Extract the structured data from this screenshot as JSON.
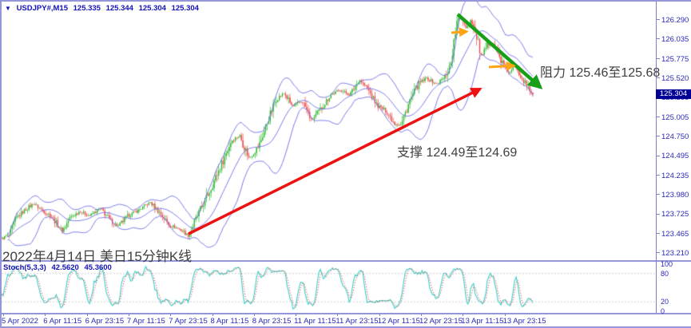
{
  "window": {
    "quote_line": {
      "dropdown_icon": {
        "name": "dropdown-icon",
        "glyph": "▼"
      },
      "symbol_period": "USDJPY#,M15",
      "open": "125.335",
      "high": "125.344",
      "low": "125.304",
      "close": "125.304"
    }
  },
  "colors": {
    "border": "#9595d9",
    "axis_text": "#2a2ab8",
    "quote_text": "#1212b8",
    "bull_candle": "#2db82d",
    "bear_candle": "#ef4545",
    "bollinger": "#7373ea",
    "stoch_main": "#38cfc8",
    "stoch_signal": "#e04545",
    "price_tag_bg": "#000096",
    "red_arrow": "#ee1111",
    "green_arrow": "#17a017",
    "orange_arrow": "#ffa515",
    "annotation_text": "#3f3f3f"
  },
  "chart_data": {
    "type": "candlestick",
    "symbol": "USDJPY#",
    "timeframe": "M15",
    "indicators": [
      "Bollinger Bands",
      "Stochastic(5,3,3)"
    ],
    "y_axis": {
      "price_at_top": 126.53,
      "price_at_bottom": 123.115
    },
    "price_axis_ticks": [
      "126.290",
      "126.035",
      "125.775",
      "125.520",
      "125.265",
      "125.005",
      "124.750",
      "124.495",
      "124.235",
      "123.980",
      "123.725",
      "123.465",
      "123.210"
    ],
    "current_price": "125.304",
    "time_axis_labels": [
      "5 Apr 2022",
      "6 Apr 11:15",
      "6 Apr 23:15",
      "7 Apr 11:15",
      "7 Apr 23:15",
      "8 Apr 11:15",
      "8 Apr 23:15",
      "11 Apr 11:15",
      "11 Apr 23:15",
      "12 Apr 11:15",
      "12 Apr 23:15",
      "13 Apr 11:15",
      "13 Apr 23:15"
    ],
    "close_waypoints": [
      [
        2,
        123.4
      ],
      [
        12,
        123.45
      ],
      [
        20,
        123.66
      ],
      [
        30,
        123.77
      ],
      [
        42,
        123.86
      ],
      [
        52,
        123.78
      ],
      [
        64,
        123.7
      ],
      [
        78,
        123.5
      ],
      [
        88,
        123.68
      ],
      [
        100,
        123.76
      ],
      [
        112,
        123.7
      ],
      [
        126,
        123.8
      ],
      [
        138,
        123.64
      ],
      [
        148,
        123.56
      ],
      [
        160,
        123.7
      ],
      [
        174,
        123.78
      ],
      [
        188,
        123.88
      ],
      [
        200,
        123.74
      ],
      [
        212,
        123.58
      ],
      [
        226,
        123.52
      ],
      [
        236,
        123.44
      ],
      [
        248,
        123.72
      ],
      [
        262,
        124.02
      ],
      [
        276,
        124.35
      ],
      [
        290,
        124.7
      ],
      [
        300,
        124.76
      ],
      [
        312,
        124.46
      ],
      [
        324,
        124.62
      ],
      [
        336,
        124.98
      ],
      [
        346,
        125.25
      ],
      [
        356,
        125.32
      ],
      [
        366,
        125.14
      ],
      [
        378,
        125.22
      ],
      [
        390,
        124.96
      ],
      [
        402,
        125.12
      ],
      [
        414,
        125.3
      ],
      [
        426,
        125.36
      ],
      [
        438,
        125.3
      ],
      [
        450,
        125.5
      ],
      [
        460,
        125.38
      ],
      [
        472,
        125.16
      ],
      [
        484,
        125.08
      ],
      [
        494,
        124.92
      ],
      [
        502,
        124.9
      ],
      [
        512,
        125.2
      ],
      [
        524,
        125.44
      ],
      [
        534,
        125.52
      ],
      [
        546,
        125.44
      ],
      [
        556,
        125.52
      ],
      [
        564,
        125.7
      ],
      [
        572,
        126.25
      ],
      [
        578,
        126.32
      ],
      [
        584,
        126.18
      ],
      [
        590,
        126.3
      ],
      [
        597,
        126.05
      ],
      [
        603,
        125.78
      ],
      [
        610,
        125.96
      ],
      [
        617,
        126.0
      ],
      [
        624,
        125.82
      ],
      [
        631,
        125.68
      ],
      [
        638,
        125.58
      ],
      [
        645,
        125.7
      ],
      [
        652,
        125.56
      ],
      [
        658,
        125.44
      ],
      [
        663,
        125.36
      ],
      [
        668,
        125.304
      ]
    ],
    "bollinger": {
      "period": 20,
      "deviation": 2
    },
    "stochastic": {
      "label": "Stoch(5,3,3)",
      "k_value": "42.5620",
      "d_value": "45.3600",
      "k_period": 5,
      "d_period": 3,
      "slowing": 3,
      "scale_ticks": [
        "100",
        "80",
        "20",
        "0"
      ],
      "level_lines": [
        80,
        20
      ]
    },
    "annotations": {
      "resistance_text": "阻力 125.46至125.68",
      "support_text": "支撑 124.49至124.69",
      "caption_text": "2022年4月14日 美日15分钟K线",
      "resistance_range": [
        125.46,
        125.68
      ],
      "support_range": [
        124.49,
        124.69
      ],
      "arrows": [
        {
          "name": "support-trendline-arrow",
          "color": "#ee1111",
          "from": [
            236,
            293
          ],
          "to": [
            608,
            108
          ],
          "width": 3.5
        },
        {
          "name": "downtrend-arrow",
          "color": "#17a017",
          "from": [
            573,
            18
          ],
          "to": [
            684,
            116
          ],
          "width": 4.5
        },
        {
          "name": "resistance-arrow-1",
          "color": "#ffa515",
          "from": [
            565,
            41
          ],
          "to": [
            591,
            39
          ],
          "width": 3
        },
        {
          "name": "resistance-arrow-2",
          "color": "#ffa515",
          "from": [
            612,
            84
          ],
          "to": [
            650,
            82
          ],
          "width": 3
        }
      ]
    }
  }
}
